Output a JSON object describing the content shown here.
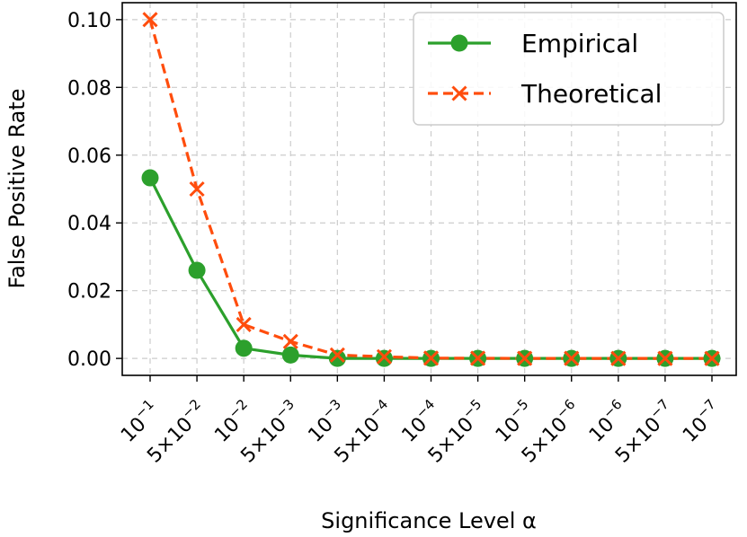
{
  "chart_data": {
    "type": "line",
    "title": "",
    "xlabel": "Significance Level α",
    "ylabel": "False Positive Rate",
    "categories": [
      "10⁻¹",
      "5×10⁻²",
      "10⁻²",
      "5×10⁻³",
      "10⁻³",
      "5×10⁻⁴",
      "10⁻⁴",
      "5×10⁻⁵",
      "10⁻⁵",
      "5×10⁻⁶",
      "10⁻⁶",
      "5×10⁻⁷",
      "10⁻⁷"
    ],
    "tick_parts": [
      {
        "coef": "",
        "exp": "−1"
      },
      {
        "coef": "5×",
        "exp": "−2"
      },
      {
        "coef": "",
        "exp": "−2"
      },
      {
        "coef": "5×",
        "exp": "−3"
      },
      {
        "coef": "",
        "exp": "−3"
      },
      {
        "coef": "5×",
        "exp": "−4"
      },
      {
        "coef": "",
        "exp": "−4"
      },
      {
        "coef": "5×",
        "exp": "−5"
      },
      {
        "coef": "",
        "exp": "−5"
      },
      {
        "coef": "5×",
        "exp": "−6"
      },
      {
        "coef": "",
        "exp": "−6"
      },
      {
        "coef": "5×",
        "exp": "−7"
      },
      {
        "coef": "",
        "exp": "−7"
      }
    ],
    "series": [
      {
        "name": "Empirical",
        "color": "#2ca02c",
        "marker": "circle",
        "linestyle": "solid",
        "values": [
          0.0533,
          0.026,
          0.003,
          0.001,
          0.0,
          0.0,
          0.0,
          0.0,
          0.0,
          0.0,
          0.0,
          0.0,
          0.0
        ]
      },
      {
        "name": "Theoretical",
        "color": "#ff4d0d",
        "marker": "x",
        "linestyle": "dashed",
        "values": [
          0.1,
          0.05,
          0.01,
          0.005,
          0.001,
          0.0005,
          0.0001,
          5e-05,
          1e-05,
          5e-06,
          1e-06,
          5e-07,
          1e-07
        ]
      }
    ],
    "ylim": [
      -0.005,
      0.105
    ],
    "yticks": [
      0.0,
      0.02,
      0.04,
      0.06,
      0.08,
      0.1
    ],
    "ytick_labels": [
      "0.00",
      "0.02",
      "0.04",
      "0.06",
      "0.08",
      "0.10"
    ],
    "grid": true,
    "legend_position": "top-right"
  }
}
